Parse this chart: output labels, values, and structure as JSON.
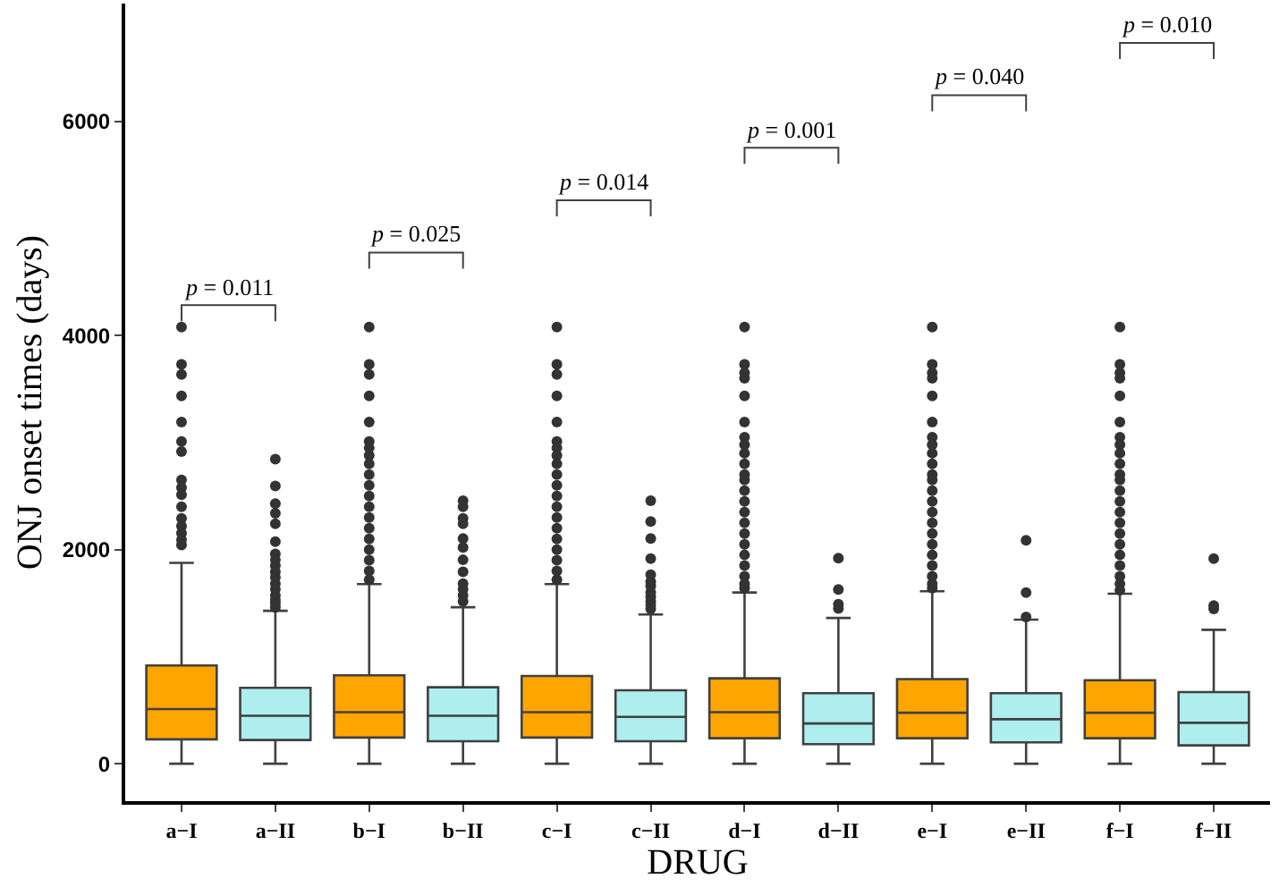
{
  "chart_data": {
    "type": "box",
    "xlabel": "DRUG",
    "ylabel": "ONJ onset times (days)",
    "categories": [
      "a−I",
      "a−II",
      "b−I",
      "b−II",
      "c−I",
      "c−II",
      "d−I",
      "d−II",
      "e−I",
      "e−II",
      "f−I",
      "f−II"
    ],
    "colors": [
      "#ffa500",
      "#aeeeee",
      "#ffa500",
      "#aeeeee",
      "#ffa500",
      "#aeeeee",
      "#ffa500",
      "#aeeeee",
      "#ffa500",
      "#aeeeee",
      "#ffa500",
      "#aeeeee"
    ],
    "boxes": [
      {
        "low": 0,
        "q1": 227,
        "median": 510,
        "q3": 918,
        "high": 1876,
        "outliers": [
          4078,
          3730,
          3635,
          3436,
          3192,
          3010,
          2916,
          2651,
          2580,
          2512,
          2400,
          2291,
          2220,
          2153,
          2090,
          2042
        ]
      },
      {
        "low": 0,
        "q1": 221,
        "median": 448,
        "q3": 709,
        "high": 1428,
        "outliers": [
          2844,
          2595,
          2429,
          2340,
          2241,
          2075,
          1960,
          1904,
          1850,
          1793,
          1740,
          1682,
          1630,
          1572,
          1530,
          1497,
          1460
        ]
      },
      {
        "low": 0,
        "q1": 244,
        "median": 481,
        "q3": 825,
        "high": 1677,
        "outliers": [
          4078,
          3730,
          3635,
          3436,
          3192,
          3010,
          2950,
          2880,
          2800,
          2700,
          2600,
          2500,
          2400,
          2300,
          2200,
          2100,
          2000,
          1900,
          1800,
          1720
        ]
      },
      {
        "low": 0,
        "q1": 210,
        "median": 448,
        "q3": 714,
        "high": 1461,
        "outliers": [
          2457,
          2400,
          2291,
          2241,
          2103,
          2020,
          1904,
          1793,
          1682,
          1630,
          1572,
          1517
        ]
      },
      {
        "low": 0,
        "q1": 244,
        "median": 481,
        "q3": 819,
        "high": 1677,
        "outliers": [
          4078,
          3730,
          3635,
          3436,
          3192,
          3010,
          2950,
          2880,
          2800,
          2700,
          2600,
          2500,
          2400,
          2300,
          2200,
          2100,
          2000,
          1900,
          1800,
          1720
        ]
      },
      {
        "low": 0,
        "q1": 210,
        "median": 437,
        "q3": 686,
        "high": 1394,
        "outliers": [
          2457,
          2263,
          2103,
          1915,
          1765,
          1700,
          1660,
          1600,
          1560,
          1517,
          1480,
          1445
        ]
      },
      {
        "low": 0,
        "q1": 238,
        "median": 481,
        "q3": 797,
        "high": 1599,
        "outliers": [
          4078,
          3730,
          3650,
          3600,
          3436,
          3192,
          3050,
          2980,
          2900,
          2800,
          2700,
          2651,
          2550,
          2450,
          2350,
          2250,
          2150,
          2050,
          1950,
          1850,
          1750,
          1680,
          1640
        ]
      },
      {
        "low": 0,
        "q1": 183,
        "median": 376,
        "q3": 659,
        "high": 1361,
        "outliers": [
          1920,
          1627,
          1489,
          1450
        ]
      },
      {
        "low": 0,
        "q1": 238,
        "median": 476,
        "q3": 790,
        "high": 1610,
        "outliers": [
          4078,
          3730,
          3650,
          3600,
          3436,
          3192,
          3050,
          2980,
          2900,
          2800,
          2700,
          2651,
          2550,
          2450,
          2350,
          2250,
          2150,
          2050,
          1950,
          1850,
          1750,
          1680,
          1640
        ]
      },
      {
        "low": 0,
        "q1": 199,
        "median": 415,
        "q3": 659,
        "high": 1345,
        "outliers": [
          2086,
          1599,
          1370
        ]
      },
      {
        "low": 0,
        "q1": 238,
        "median": 476,
        "q3": 780,
        "high": 1588,
        "outliers": [
          4078,
          3730,
          3650,
          3600,
          3436,
          3192,
          3050,
          2980,
          2900,
          2800,
          2700,
          2651,
          2550,
          2450,
          2350,
          2250,
          2150,
          2050,
          1950,
          1850,
          1750,
          1680,
          1620
        ]
      },
      {
        "low": 0,
        "q1": 171,
        "median": 382,
        "q3": 669,
        "high": 1250,
        "outliers": [
          1915,
          1477,
          1445
        ]
      }
    ],
    "ylim": [
      -350,
      7100
    ],
    "yticks": [
      0,
      2000,
      4000,
      6000
    ],
    "annotations": [
      "p = 0.011",
      "p = 0.025",
      "p = 0.014",
      "p = 0.001",
      "p = 0.040",
      "p = 0.010"
    ]
  }
}
